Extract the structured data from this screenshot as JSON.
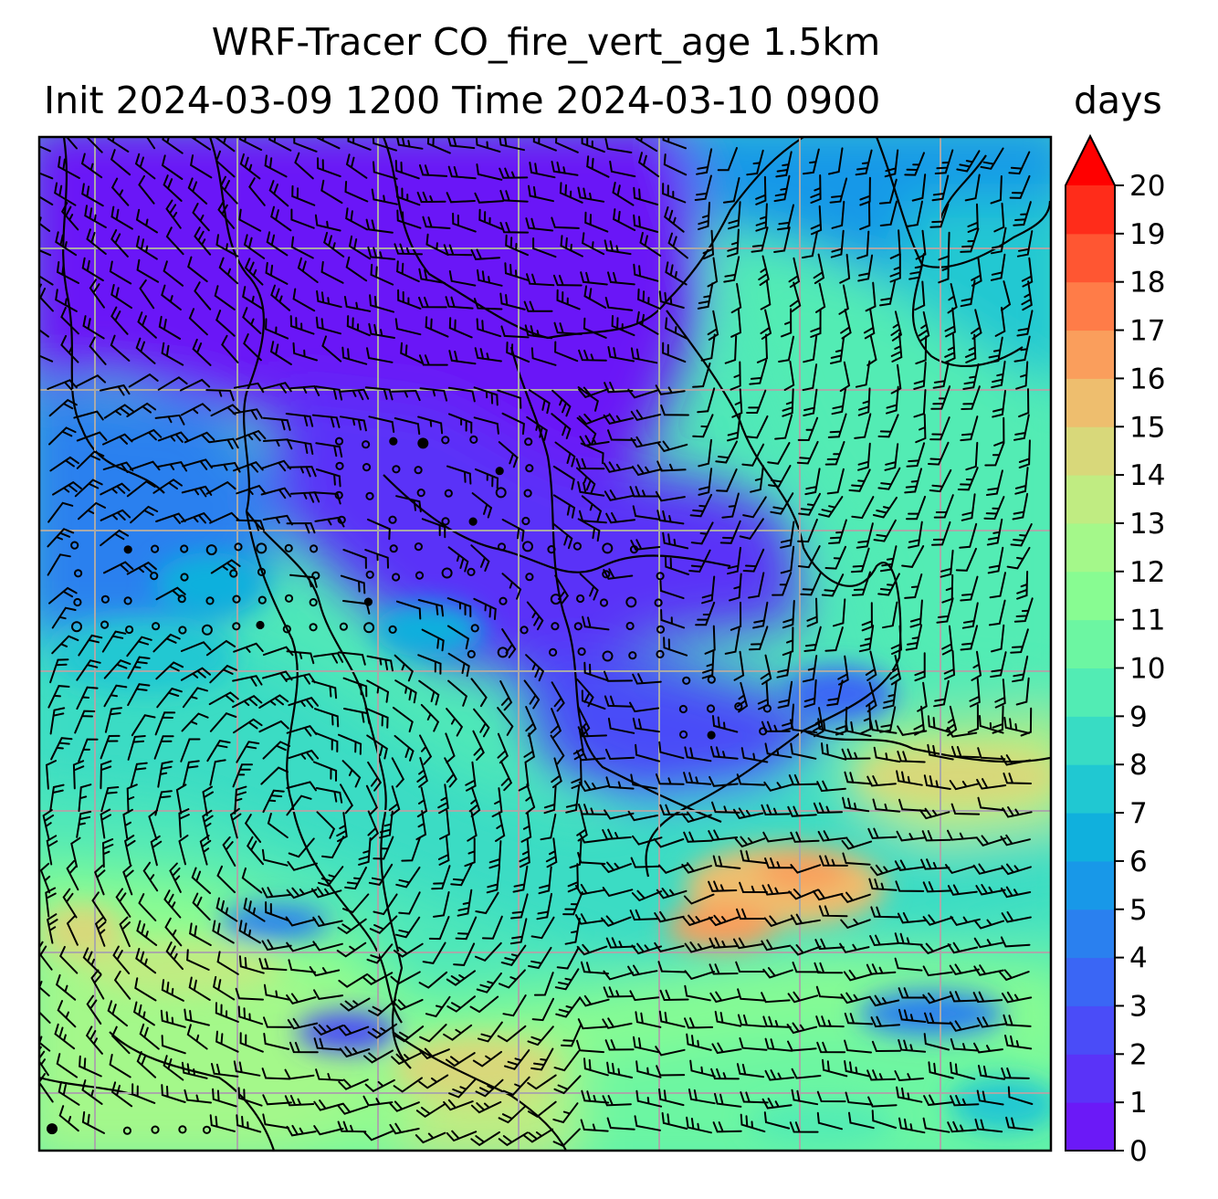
{
  "figure": {
    "title_line1": "WRF-Tracer CO_fire_vert_age 1.5km",
    "title_line2": "Init 2024-03-09 1200 Time 2024-03-10 0900",
    "units": "days"
  },
  "colorbar": {
    "min": 0,
    "max": 20,
    "step": 1,
    "extend": "max",
    "tick_labels": [
      "0",
      "1",
      "2",
      "3",
      "4",
      "5",
      "6",
      "7",
      "8",
      "9",
      "10",
      "11",
      "12",
      "13",
      "14",
      "15",
      "16",
      "17",
      "18",
      "19",
      "20"
    ],
    "colormap": "rainbow",
    "colors": [
      "#6b19f7",
      "#5a33f8",
      "#4a4cf8",
      "#3a66f5",
      "#2a80ef",
      "#1898e8",
      "#10b0dd",
      "#20c8d2",
      "#38dcc4",
      "#52ecb4",
      "#6cf6a2",
      "#88fc92",
      "#a4f88a",
      "#c0ec82",
      "#d8d87a",
      "#eebe6e",
      "#fa9e5c",
      "#ff7c48",
      "#ff5632",
      "#ff2c1a",
      "#ff0000"
    ]
  },
  "map": {
    "gridlines": true
  }
}
